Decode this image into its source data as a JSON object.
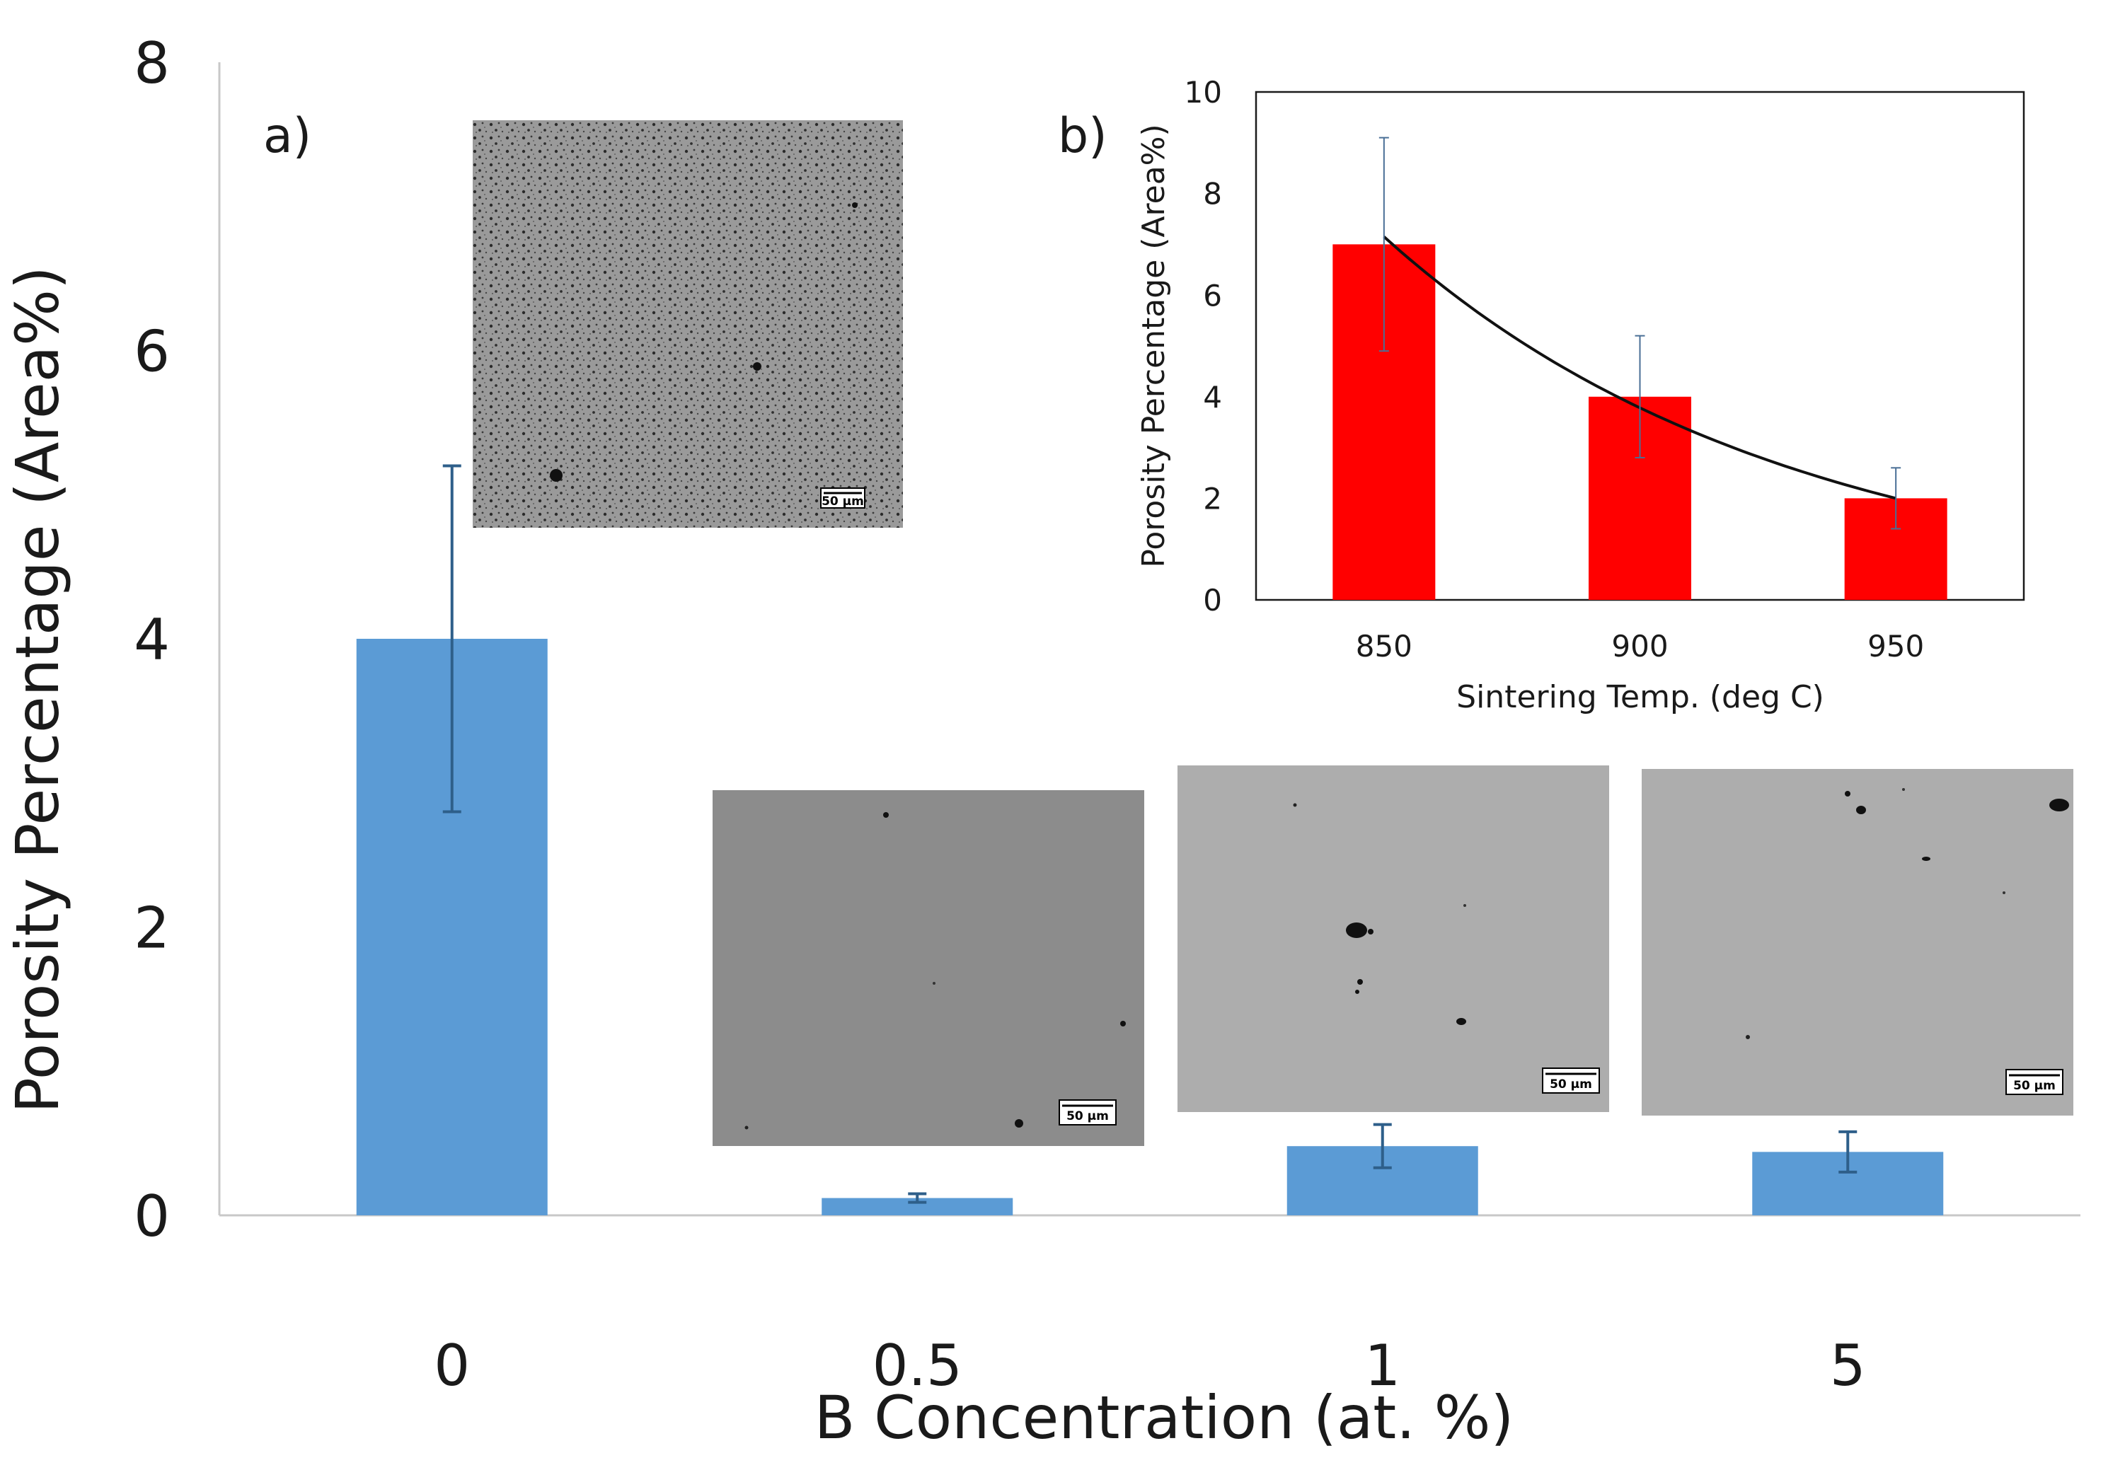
{
  "chart_data": [
    {
      "type": "bar",
      "panel_label": "a)",
      "title": "",
      "xlabel": "B Concentration (at. %)",
      "ylabel": "Porosity Percentage (Area%)",
      "categories": [
        "0",
        "0.5",
        "1",
        "5"
      ],
      "values": [
        4.0,
        0.12,
        0.48,
        0.44
      ],
      "error_bars": [
        1.2,
        0.03,
        0.15,
        0.14
      ],
      "ylim": [
        0,
        8
      ],
      "yticks": [
        0,
        2,
        4,
        6,
        8
      ],
      "grid": false,
      "bar_color": "#5b9bd5",
      "error_color": "#2e5f8a",
      "micrographs": [
        {
          "category": "0",
          "scale_bar": "50 µm",
          "tone": "#9a9a9a"
        },
        {
          "category": "0.5",
          "scale_bar": "50 µm",
          "tone": "#8c8c8c"
        },
        {
          "category": "1",
          "scale_bar": "50 µm",
          "tone": "#adadad"
        },
        {
          "category": "5",
          "scale_bar": "50 µm",
          "tone": "#adadad"
        }
      ]
    },
    {
      "type": "bar",
      "panel_label": "b)",
      "title": "",
      "xlabel": "Sintering Temp. (deg C)",
      "ylabel": "Porosity Percentage (Area%)",
      "categories": [
        "850",
        "900",
        "950"
      ],
      "values": [
        7.0,
        4.0,
        2.0
      ],
      "error_bars": [
        2.1,
        1.2,
        0.6
      ],
      "ylim": [
        0,
        10
      ],
      "yticks": [
        0,
        2,
        4,
        6,
        8,
        10
      ],
      "grid": false,
      "bar_color": "#ff0000",
      "error_color": "#4a6f96",
      "trendline": {
        "type": "exponential",
        "y_start": 7.15,
        "y_end": 2.0
      }
    }
  ]
}
